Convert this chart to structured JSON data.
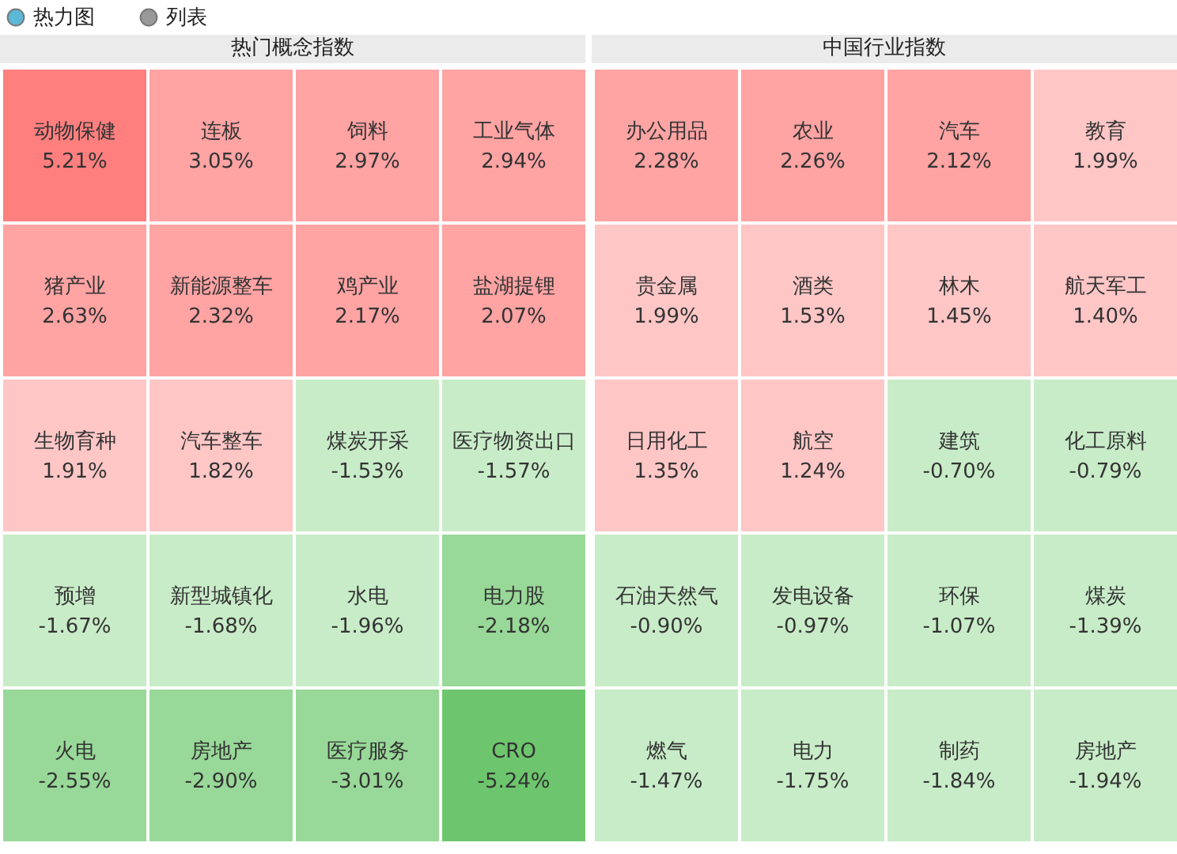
{
  "chart_data": [
    {
      "type": "other",
      "title": "热门概念指数",
      "annotations": [
        "热力图",
        "列表"
      ],
      "categories": [
        "动物保健",
        "连板",
        "饲料",
        "工业气体",
        "猪产业",
        "新能源整车",
        "鸡产业",
        "盐湖提锂",
        "生物育种",
        "汽车整车",
        "煤炭开采",
        "医疗物资出口",
        "预增",
        "新型城镇化",
        "水电",
        "电力股",
        "火电",
        "房地产",
        "医疗服务",
        "CRO"
      ],
      "values": [
        5.21,
        3.05,
        2.97,
        2.94,
        2.63,
        2.32,
        2.17,
        2.07,
        1.91,
        1.82,
        -1.53,
        -1.57,
        -1.67,
        -1.68,
        -1.96,
        -2.18,
        -2.55,
        -2.9,
        -3.01,
        -5.24
      ],
      "value_labels": [
        "5.21%",
        "3.05%",
        "2.97%",
        "2.94%",
        "2.63%",
        "2.32%",
        "2.17%",
        "2.07%",
        "1.91%",
        "1.82%",
        "-1.53%",
        "-1.57%",
        "-1.67%",
        "-1.68%",
        "-1.96%",
        "-2.18%",
        "-2.55%",
        "-2.90%",
        "-3.01%",
        "-5.24%"
      ]
    },
    {
      "type": "other",
      "title": "中国行业指数",
      "categories": [
        "办公用品",
        "农业",
        "汽车",
        "教育",
        "贵金属",
        "酒类",
        "林木",
        "航天军工",
        "日用化工",
        "航空",
        "建筑",
        "化工原料",
        "石油天然气",
        "发电设备",
        "环保",
        "煤炭",
        "燃气",
        "电力",
        "制药",
        "房地产"
      ],
      "values": [
        2.28,
        2.26,
        2.12,
        1.99,
        1.99,
        1.53,
        1.45,
        1.4,
        1.35,
        1.24,
        -0.7,
        -0.79,
        -0.9,
        -0.97,
        -1.07,
        -1.39,
        -1.47,
        -1.75,
        -1.84,
        -1.94
      ],
      "value_labels": [
        "2.28%",
        "2.26%",
        "2.12%",
        "1.99%",
        "1.99%",
        "1.53%",
        "1.45%",
        "1.40%",
        "1.35%",
        "1.24%",
        "-0.70%",
        "-0.79%",
        "-0.90%",
        "-0.97%",
        "-1.07%",
        "-1.39%",
        "-1.47%",
        "-1.75%",
        "-1.84%",
        "-1.94%"
      ]
    }
  ]
}
